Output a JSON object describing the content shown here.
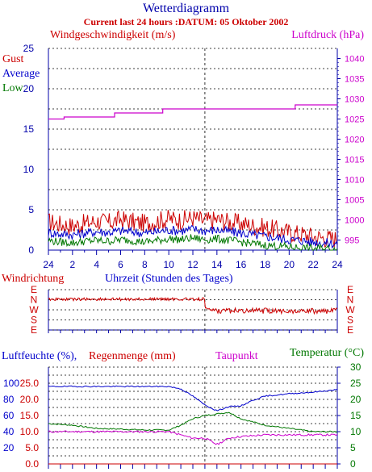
{
  "header": {
    "title": "Wetterdiagramm",
    "subtitle": "Current last 24 hours :DATUM: 05 Oktober 2002"
  },
  "colors": {
    "gust": "#cc0000",
    "average": "#0000cc",
    "low": "#007700",
    "pressure": "#cc00cc",
    "humidity": "#0000cc",
    "rain": "#cc0000",
    "dewpoint": "#cc00cc",
    "temperature": "#007700",
    "direction": "#cc0000",
    "frame": "#0000aa"
  },
  "wind_panel": {
    "left_axis_title": "Windgeschwindigkeit (m/s)",
    "right_axis_title": "Luftdruck (hPa)",
    "legend": [
      "Gust",
      "Average",
      "Low"
    ]
  },
  "direction_panel": {
    "title": "Windrichtung",
    "time_title": "Uhrzeit (Stunden des Tages)",
    "labels": [
      "E",
      "N",
      "W",
      "S",
      "E"
    ]
  },
  "humidity_panel": {
    "humidity_title": "Luftfeuchte (%),",
    "rain_title": "Regenmenge (mm)",
    "dewpoint_title": "Taupunkt",
    "temperature_title": "Temperatur (°C)"
  },
  "chart_data": [
    {
      "type": "line",
      "title": "",
      "xlabel": "Uhrzeit (Stunden des Tages)",
      "ylabel": "Windgeschwindigkeit (m/s)",
      "y2label": "Luftdruck (hPa)",
      "x_ticks": [
        "24",
        "2",
        "4",
        "6",
        "8",
        "10",
        "12",
        "14",
        "16",
        "18",
        "20",
        "22",
        "24"
      ],
      "ylim": [
        0,
        25
      ],
      "y_ticks": [
        0,
        5,
        10,
        15,
        20,
        25
      ],
      "y2lim": [
        992.5,
        1042.5
      ],
      "y2_ticks": [
        995,
        1000,
        1005,
        1010,
        1015,
        1020,
        1025,
        1030,
        1035,
        1040
      ],
      "grid": true,
      "series": [
        {
          "name": "Gust",
          "axis": "left",
          "x": [
            0,
            1,
            2,
            3,
            4,
            5,
            6,
            7,
            8,
            9,
            10,
            11,
            12,
            13,
            14,
            15,
            16,
            17,
            18,
            19,
            20,
            21,
            22,
            23,
            24
          ],
          "values": [
            3.5,
            3.2,
            3.0,
            3.3,
            3.6,
            3.4,
            3.8,
            3.5,
            3.3,
            3.6,
            3.9,
            3.7,
            4.0,
            3.6,
            3.8,
            3.5,
            3.3,
            3.0,
            2.8,
            2.5,
            2.2,
            2.0,
            1.7,
            1.5,
            1.4
          ]
        },
        {
          "name": "Average",
          "axis": "left",
          "x": [
            0,
            1,
            2,
            3,
            4,
            5,
            6,
            7,
            8,
            9,
            10,
            11,
            12,
            13,
            14,
            15,
            16,
            17,
            18,
            19,
            20,
            21,
            22,
            23,
            24
          ],
          "values": [
            2.2,
            2.0,
            1.9,
            2.1,
            2.3,
            2.2,
            2.4,
            2.3,
            2.1,
            2.3,
            2.5,
            2.4,
            2.6,
            2.4,
            2.5,
            2.3,
            2.1,
            1.9,
            1.7,
            1.5,
            1.3,
            1.2,
            1.0,
            0.9,
            0.8
          ]
        },
        {
          "name": "Low",
          "axis": "left",
          "x": [
            0,
            1,
            2,
            3,
            4,
            5,
            6,
            7,
            8,
            9,
            10,
            11,
            12,
            13,
            14,
            15,
            16,
            17,
            18,
            19,
            20,
            21,
            22,
            23,
            24
          ],
          "values": [
            1.2,
            1.0,
            0.9,
            1.1,
            1.2,
            1.1,
            1.3,
            1.2,
            1.0,
            1.2,
            1.4,
            1.3,
            1.5,
            1.3,
            1.4,
            1.2,
            1.0,
            0.8,
            0.6,
            0.5,
            0.4,
            0.3,
            0.2,
            0.2,
            0.1
          ]
        },
        {
          "name": "Luftdruck",
          "axis": "right",
          "x": [
            0,
            1.3,
            1.3,
            5.5,
            5.5,
            9.5,
            9.5,
            20.5,
            20.5,
            24
          ],
          "values": [
            1025,
            1025,
            1025.5,
            1025.5,
            1026.5,
            1026.5,
            1027.5,
            1027.5,
            1028.5,
            1028.5
          ]
        }
      ]
    },
    {
      "type": "line",
      "title": "Windrichtung",
      "xlabel": "",
      "ylabel": "",
      "y_ticks": [
        "E",
        "N",
        "W",
        "S",
        "E"
      ],
      "grid": true,
      "series": [
        {
          "name": "Windrichtung",
          "x": [
            0,
            2,
            4,
            6,
            8,
            10,
            12,
            14,
            16,
            18,
            20,
            22,
            24
          ],
          "values": [
            "N",
            "N",
            "N",
            "N",
            "N",
            "N",
            "N",
            "W",
            "W",
            "W",
            "W",
            "W",
            "W"
          ]
        }
      ]
    },
    {
      "type": "line",
      "title": "",
      "xlabel": "",
      "ylabel": "Luftfeuchte (%), Regenmenge (mm)",
      "y_ticks_humidity": [
        20,
        40,
        60,
        80,
        100
      ],
      "y_ticks_rain": [
        "0.0",
        "5.0",
        "10.0",
        "15.0",
        "20.0",
        "25.0"
      ],
      "y2label": "Temperatur (°C)",
      "y2lim": [
        0,
        30
      ],
      "y2_ticks": [
        0,
        5,
        10,
        15,
        20,
        25,
        30
      ],
      "grid": true,
      "series": [
        {
          "name": "Luftfeuchte",
          "axis": "humidity",
          "x": [
            0,
            2,
            4,
            6,
            8,
            10,
            11,
            12,
            13,
            14,
            15,
            16,
            17,
            18,
            20,
            22,
            24
          ],
          "values": [
            96,
            96,
            96,
            96,
            96,
            96,
            93,
            84,
            73,
            66,
            71,
            72,
            79,
            84,
            87,
            89,
            92
          ]
        },
        {
          "name": "Taupunkt",
          "axis": "right",
          "x": [
            0,
            2,
            4,
            6,
            8,
            10,
            12,
            13,
            14,
            15,
            16,
            18,
            20,
            22,
            24
          ],
          "values": [
            10,
            10,
            10,
            10,
            10,
            10,
            8,
            8,
            6,
            8,
            8.5,
            9,
            9,
            9,
            9
          ]
        },
        {
          "name": "Temperatur",
          "axis": "right",
          "x": [
            0,
            2,
            4,
            6,
            8,
            10,
            11,
            12,
            13,
            14,
            15,
            16,
            18,
            20,
            22,
            24
          ],
          "values": [
            12.5,
            12,
            11,
            10.8,
            10.5,
            10.5,
            12,
            14,
            15,
            15.5,
            16,
            14,
            12,
            11,
            10,
            10
          ]
        },
        {
          "name": "Regenmenge",
          "axis": "rain",
          "x": [
            0,
            24
          ],
          "values": [
            0,
            0
          ]
        }
      ]
    }
  ]
}
